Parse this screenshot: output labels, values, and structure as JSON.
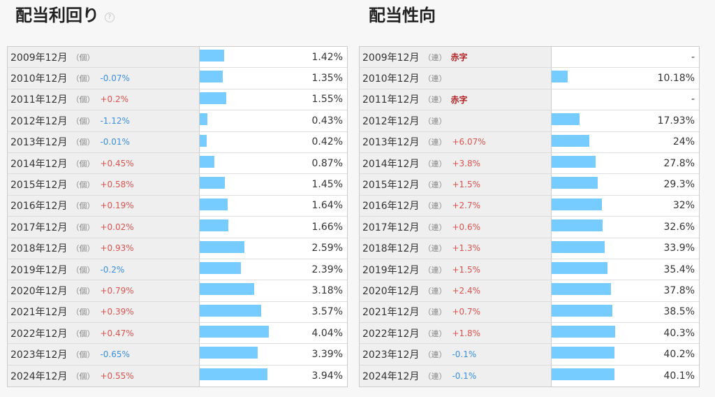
{
  "chart_data": [
    {
      "type": "bar",
      "title": "配当利回り",
      "help_icon": "question-circle-icon",
      "bar_color": "#77ccff",
      "xlim": [
        0,
        8.5
      ],
      "rows": [
        {
          "year": "2009年12月",
          "type": "（個）",
          "change": "",
          "value": 1.42,
          "display": "1.42%"
        },
        {
          "year": "2010年12月",
          "type": "（個）",
          "change": "-0.07%",
          "value": 1.35,
          "display": "1.35%"
        },
        {
          "year": "2011年12月",
          "type": "（個）",
          "change": "+0.2%",
          "value": 1.55,
          "display": "1.55%"
        },
        {
          "year": "2012年12月",
          "type": "（個）",
          "change": "-1.12%",
          "value": 0.43,
          "display": "0.43%"
        },
        {
          "year": "2013年12月",
          "type": "（個）",
          "change": "-0.01%",
          "value": 0.42,
          "display": "0.42%"
        },
        {
          "year": "2014年12月",
          "type": "（個）",
          "change": "+0.45%",
          "value": 0.87,
          "display": "0.87%"
        },
        {
          "year": "2015年12月",
          "type": "（個）",
          "change": "+0.58%",
          "value": 1.45,
          "display": "1.45%"
        },
        {
          "year": "2016年12月",
          "type": "（個）",
          "change": "+0.19%",
          "value": 1.64,
          "display": "1.64%"
        },
        {
          "year": "2017年12月",
          "type": "（個）",
          "change": "+0.02%",
          "value": 1.66,
          "display": "1.66%"
        },
        {
          "year": "2018年12月",
          "type": "（個）",
          "change": "+0.93%",
          "value": 2.59,
          "display": "2.59%"
        },
        {
          "year": "2019年12月",
          "type": "（個）",
          "change": "-0.2%",
          "value": 2.39,
          "display": "2.39%"
        },
        {
          "year": "2020年12月",
          "type": "（個）",
          "change": "+0.79%",
          "value": 3.18,
          "display": "3.18%"
        },
        {
          "year": "2021年12月",
          "type": "（個）",
          "change": "+0.39%",
          "value": 3.57,
          "display": "3.57%"
        },
        {
          "year": "2022年12月",
          "type": "（個）",
          "change": "+0.47%",
          "value": 4.04,
          "display": "4.04%"
        },
        {
          "year": "2023年12月",
          "type": "（個）",
          "change": "-0.65%",
          "value": 3.39,
          "display": "3.39%"
        },
        {
          "year": "2024年12月",
          "type": "（個）",
          "change": "+0.55%",
          "value": 3.94,
          "display": "3.94%"
        }
      ]
    },
    {
      "type": "bar",
      "title": "配当性向",
      "bar_color": "#77ccff",
      "xlim": [
        0,
        93
      ],
      "rows": [
        {
          "year": "2009年12月",
          "type": "（連）",
          "change": "",
          "deficit": "赤字",
          "value": null,
          "display": "-"
        },
        {
          "year": "2010年12月",
          "type": "（連）",
          "change": "",
          "value": 10.18,
          "display": "10.18%"
        },
        {
          "year": "2011年12月",
          "type": "（連）",
          "change": "",
          "deficit": "赤字",
          "value": null,
          "display": "-"
        },
        {
          "year": "2012年12月",
          "type": "（連）",
          "change": "",
          "value": 17.93,
          "display": "17.93%"
        },
        {
          "year": "2013年12月",
          "type": "（連）",
          "change": "+6.07%",
          "value": 24,
          "display": "24%"
        },
        {
          "year": "2014年12月",
          "type": "（連）",
          "change": "+3.8%",
          "value": 27.8,
          "display": "27.8%"
        },
        {
          "year": "2015年12月",
          "type": "（連）",
          "change": "+1.5%",
          "value": 29.3,
          "display": "29.3%"
        },
        {
          "year": "2016年12月",
          "type": "（連）",
          "change": "+2.7%",
          "value": 32,
          "display": "32%"
        },
        {
          "year": "2017年12月",
          "type": "（連）",
          "change": "+0.6%",
          "value": 32.6,
          "display": "32.6%"
        },
        {
          "year": "2018年12月",
          "type": "（連）",
          "change": "+1.3%",
          "value": 33.9,
          "display": "33.9%"
        },
        {
          "year": "2019年12月",
          "type": "（連）",
          "change": "+1.5%",
          "value": 35.4,
          "display": "35.4%"
        },
        {
          "year": "2020年12月",
          "type": "（連）",
          "change": "+2.4%",
          "value": 37.8,
          "display": "37.8%"
        },
        {
          "year": "2021年12月",
          "type": "（連）",
          "change": "+0.7%",
          "value": 38.5,
          "display": "38.5%"
        },
        {
          "year": "2022年12月",
          "type": "（連）",
          "change": "+1.8%",
          "value": 40.3,
          "display": "40.3%"
        },
        {
          "year": "2023年12月",
          "type": "（連）",
          "change": "-0.1%",
          "value": 40.2,
          "display": "40.2%"
        },
        {
          "year": "2024年12月",
          "type": "（連）",
          "change": "-0.1%",
          "value": 40.1,
          "display": "40.1%"
        }
      ]
    }
  ]
}
